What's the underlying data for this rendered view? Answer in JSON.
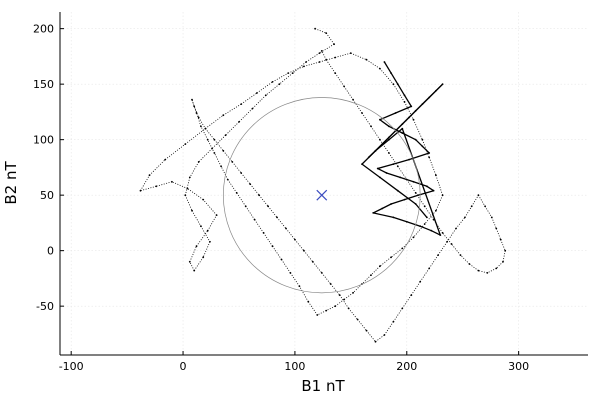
{
  "chart_data": {
    "type": "scatter",
    "xlabel": "B1 nT",
    "ylabel": "B2 nT",
    "xlim": [
      -110,
      362
    ],
    "ylim": [
      -94,
      215
    ],
    "xticks": [
      -100,
      0,
      100,
      200,
      300
    ],
    "yticks": [
      -50,
      0,
      50,
      100,
      150,
      200
    ],
    "grid": true,
    "legend": "none",
    "colors": {
      "trace": "#000000",
      "center_marker": "#3b4cc0",
      "circle": "#888888",
      "grid": "#e6e6e6"
    },
    "series": [
      {
        "style": "dotted-trace",
        "x": [
          118,
          128,
          135,
          122,
          110,
          98,
          86,
          74,
          62,
          50,
          38,
          26,
          14,
          6,
          2,
          8,
          16,
          24,
          18,
          10,
          6,
          12,
          22,
          30,
          18,
          4,
          -10,
          -24,
          -38,
          -30,
          -16,
          2,
          20,
          36,
          52,
          66,
          80,
          94,
          108,
          122,
          136,
          150,
          164,
          176,
          188,
          198,
          206,
          214,
          220,
          226,
          232,
          226,
          216,
          206,
          196,
          186,
          176,
          168,
          160,
          152,
          144,
          136,
          128,
          120,
          112,
          104,
          96,
          88,
          80,
          72,
          64,
          56,
          48,
          40,
          34,
          28,
          22,
          16,
          12,
          8,
          10,
          14,
          20,
          28,
          36,
          44,
          52,
          60,
          68,
          76,
          84,
          92,
          100,
          108,
          116,
          124,
          132,
          140,
          148,
          156,
          164,
          172,
          180,
          188,
          196,
          204,
          212,
          220,
          228,
          236,
          244,
          252,
          258,
          264,
          270,
          276,
          280,
          284,
          288,
          286,
          280,
          272,
          264,
          256,
          248,
          240,
          232,
          224,
          216,
          208,
          200,
          192,
          184,
          176,
          168,
          160,
          152,
          144,
          136,
          128,
          124
        ],
        "y": [
          200,
          196,
          186,
          178,
          170,
          160,
          150,
          140,
          128,
          116,
          104,
          92,
          80,
          66,
          50,
          36,
          22,
          8,
          -6,
          -18,
          -10,
          4,
          18,
          32,
          46,
          56,
          62,
          58,
          54,
          68,
          82,
          96,
          110,
          122,
          132,
          142,
          152,
          160,
          166,
          170,
          174,
          178,
          172,
          164,
          150,
          134,
          118,
          100,
          84,
          68,
          50,
          36,
          24,
          12,
          2,
          -6,
          -14,
          -22,
          -30,
          -38,
          -44,
          -50,
          -54,
          -58,
          -46,
          -32,
          -20,
          -8,
          4,
          16,
          28,
          40,
          52,
          64,
          76,
          88,
          100,
          112,
          124,
          136,
          130,
          120,
          110,
          100,
          90,
          80,
          70,
          60,
          50,
          40,
          30,
          20,
          10,
          0,
          -10,
          -20,
          -30,
          -40,
          -52,
          -62,
          -72,
          -82,
          -76,
          -64,
          -52,
          -40,
          -28,
          -16,
          -4,
          8,
          20,
          30,
          40,
          50,
          40,
          30,
          20,
          10,
          0,
          -10,
          -16,
          -20,
          -18,
          -12,
          -4,
          6,
          16,
          28,
          40,
          52,
          64,
          76,
          88,
          100,
          112,
          124,
          136,
          148,
          160,
          172,
          180
        ]
      },
      {
        "style": "dense-cluster",
        "x": [
          180,
          186,
          192,
          198,
          204,
          190,
          176,
          184,
          196,
          208,
          214,
          220,
          202,
          188,
          174,
          182,
          194,
          206,
          218,
          224,
          210,
          198,
          186,
          178,
          170,
          188,
          200,
          212,
          222,
          230,
          196,
          184,
          172,
          166,
          178,
          190,
          202,
          214,
          226,
          232,
          220,
          208,
          196,
          184,
          172,
          160,
          176,
          192,
          208,
          218
        ],
        "y": [
          170,
          160,
          150,
          140,
          130,
          124,
          118,
          112,
          106,
          100,
          94,
          88,
          82,
          78,
          74,
          70,
          66,
          62,
          58,
          54,
          50,
          46,
          42,
          38,
          34,
          30,
          26,
          22,
          18,
          14,
          110,
          100,
          90,
          84,
          96,
          108,
          120,
          132,
          144,
          150,
          138,
          126,
          114,
          102,
          90,
          78,
          66,
          54,
          42,
          30
        ]
      }
    ],
    "annotations": [
      {
        "type": "marker",
        "symbol": "x",
        "x": 124,
        "y": 50
      },
      {
        "type": "circle",
        "center_x": 124,
        "center_y": 50,
        "radius": 88
      }
    ]
  }
}
